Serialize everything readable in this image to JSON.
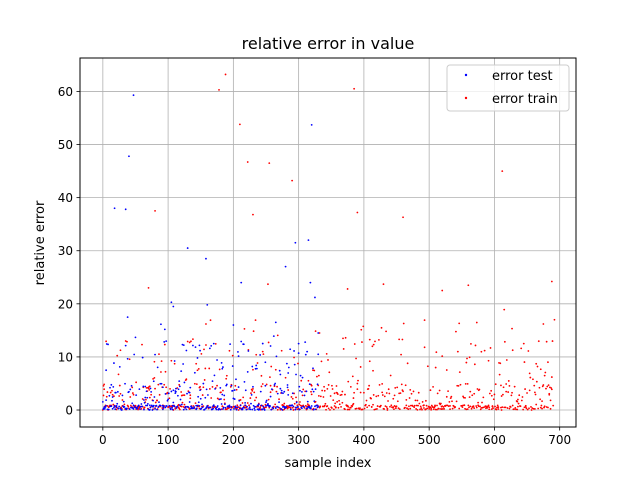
{
  "chart_data": {
    "type": "scatter",
    "title": "relative error in value",
    "xlabel": "sample index",
    "ylabel": "relative error",
    "xlim": [
      -35,
      725
    ],
    "ylim": [
      -3.2,
      66.3
    ],
    "xticks": [
      0,
      100,
      200,
      300,
      400,
      500,
      600,
      700
    ],
    "yticks": [
      0,
      10,
      20,
      30,
      40,
      50,
      60
    ],
    "grid": true,
    "legend_position": "top-right",
    "series": [
      {
        "name": "error test",
        "color": "#0000ff",
        "x_range": [
          0,
          330
        ],
        "highlights": [
          [
            5,
            7.5
          ],
          [
            18,
            38
          ],
          [
            35,
            37.8
          ],
          [
            38,
            17.5
          ],
          [
            40,
            47.8
          ],
          [
            47,
            59.3
          ],
          [
            105,
            20.3
          ],
          [
            108,
            19.5
          ],
          [
            130,
            30.5
          ],
          [
            158,
            28.5
          ],
          [
            160,
            19.8
          ],
          [
            170,
            12.5
          ],
          [
            200,
            16
          ],
          [
            212,
            24
          ],
          [
            265,
            16.5
          ],
          [
            280,
            27
          ],
          [
            295,
            31.5
          ],
          [
            300,
            12.5
          ],
          [
            315,
            32
          ],
          [
            318,
            24
          ],
          [
            320,
            53.7
          ],
          [
            325,
            21.2
          ],
          [
            330,
            14.5
          ]
        ]
      },
      {
        "name": "error train",
        "color": "#ff0000",
        "x_range": [
          0,
          690
        ],
        "highlights": [
          [
            70,
            23
          ],
          [
            80,
            37.5
          ],
          [
            158,
            16.2
          ],
          [
            178,
            60.3
          ],
          [
            188,
            63.2
          ],
          [
            210,
            53.8
          ],
          [
            222,
            46.7
          ],
          [
            230,
            36.8
          ],
          [
            245,
            11
          ],
          [
            253,
            23.7
          ],
          [
            255,
            46.5
          ],
          [
            290,
            43.2
          ],
          [
            332,
            14.5
          ],
          [
            375,
            22.8
          ],
          [
            385,
            60.5
          ],
          [
            390,
            37.2
          ],
          [
            430,
            23.7
          ],
          [
            460,
            36.3
          ],
          [
            520,
            22.5
          ],
          [
            560,
            23.5
          ],
          [
            612,
            45
          ],
          [
            615,
            18.9
          ],
          [
            688,
            24.2
          ],
          [
            692,
            17
          ]
        ]
      }
    ]
  }
}
